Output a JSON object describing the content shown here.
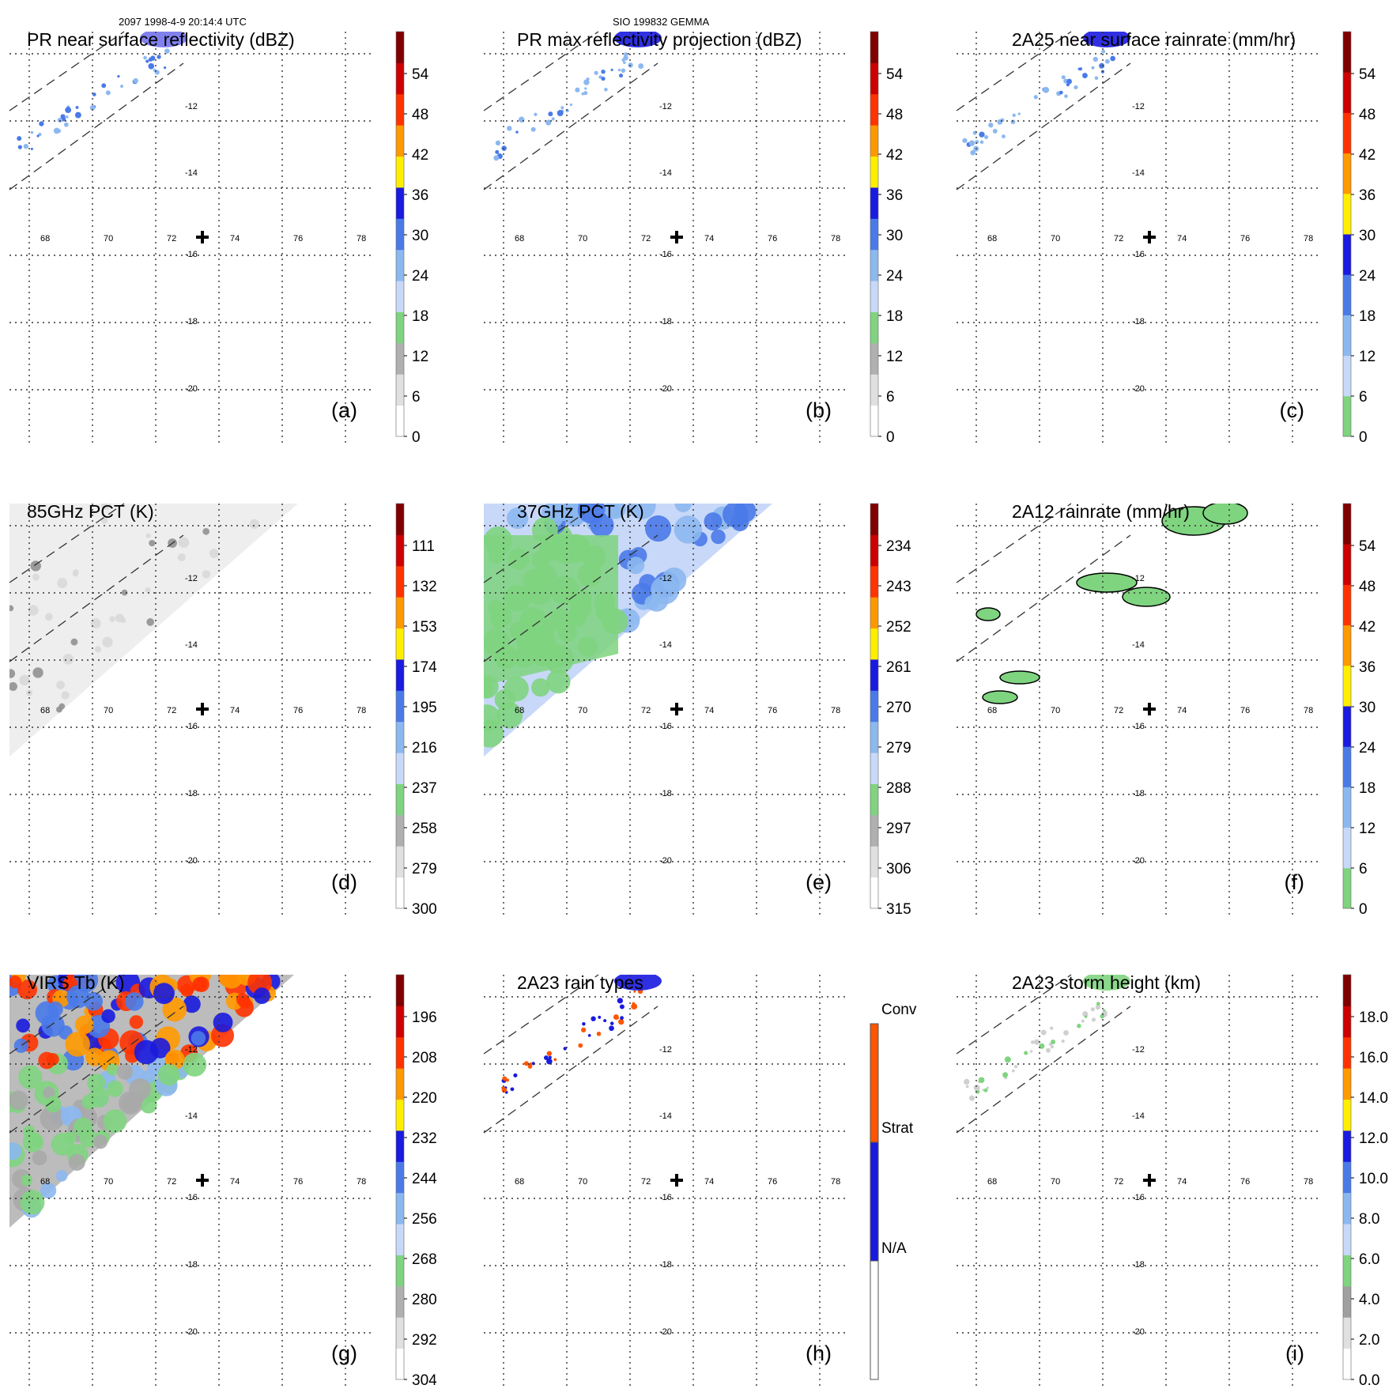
{
  "header": {
    "left": "2097 1998-4-9 20:14:4 UTC",
    "center": "SIO 199832 GEMMA"
  },
  "axes": {
    "lat_labels": [
      "-12",
      "-14",
      "-16",
      "-18",
      "-20"
    ],
    "lon_labels": [
      "68",
      "70",
      "72",
      "74",
      "76",
      "78"
    ]
  },
  "panels": [
    {
      "id": "a",
      "title": "PR near surface reflectivity (dBZ)",
      "label": "(a)",
      "colorbar": {
        "ticks": [
          "0",
          "6",
          "12",
          "18",
          "24",
          "30",
          "36",
          "42",
          "48",
          "54"
        ],
        "colors": [
          "#ffffff",
          "#e0e0e0",
          "#b0b0b0",
          "#7fd47f",
          "#c8d8f8",
          "#8cb8f0",
          "#4a7ae8",
          "#1a1ae0",
          "#ffee00",
          "#ff9900",
          "#ff3300",
          "#cc0000",
          "#800000"
        ]
      }
    },
    {
      "id": "b",
      "title": "PR max reflectivity projection (dBZ)",
      "label": "(b)",
      "colorbar": {
        "ticks": [
          "0",
          "6",
          "12",
          "18",
          "24",
          "30",
          "36",
          "42",
          "48",
          "54"
        ],
        "colors": [
          "#ffffff",
          "#e0e0e0",
          "#b0b0b0",
          "#7fd47f",
          "#c8d8f8",
          "#8cb8f0",
          "#4a7ae8",
          "#1a1ae0",
          "#ffee00",
          "#ff9900",
          "#ff3300",
          "#cc0000",
          "#800000"
        ]
      }
    },
    {
      "id": "c",
      "title": "2A25 near surface rainrate (mm/hr)",
      "label": "(c)",
      "colorbar": {
        "ticks": [
          "0",
          "6",
          "12",
          "18",
          "24",
          "30",
          "36",
          "42",
          "48",
          "54"
        ],
        "colors": [
          "#7fd47f",
          "#c8d8f8",
          "#8cb8f0",
          "#4a7ae8",
          "#1a1ae0",
          "#ffee00",
          "#ff9900",
          "#ff3300",
          "#cc0000",
          "#800000"
        ]
      }
    },
    {
      "id": "d",
      "title": "85GHz PCT (K)",
      "label": "(d)",
      "colorbar": {
        "ticks": [
          "300",
          "279",
          "258",
          "237",
          "216",
          "195",
          "174",
          "153",
          "132",
          "111"
        ],
        "colors": [
          "#ffffff",
          "#e0e0e0",
          "#b0b0b0",
          "#7fd47f",
          "#c8d8f8",
          "#8cb8f0",
          "#4a7ae8",
          "#1a1ae0",
          "#ffee00",
          "#ff9900",
          "#ff3300",
          "#cc0000",
          "#800000"
        ]
      }
    },
    {
      "id": "e",
      "title": "37GHz PCT (K)",
      "label": "(e)",
      "colorbar": {
        "ticks": [
          "315",
          "306",
          "297",
          "288",
          "279",
          "270",
          "261",
          "252",
          "243",
          "234"
        ],
        "colors": [
          "#ffffff",
          "#e0e0e0",
          "#b0b0b0",
          "#7fd47f",
          "#c8d8f8",
          "#8cb8f0",
          "#4a7ae8",
          "#1a1ae0",
          "#ffee00",
          "#ff9900",
          "#ff3300",
          "#cc0000",
          "#800000"
        ]
      }
    },
    {
      "id": "f",
      "title": "2A12 rainrate (mm/hr)",
      "label": "(f)",
      "colorbar": {
        "ticks": [
          "0",
          "6",
          "12",
          "18",
          "24",
          "30",
          "36",
          "42",
          "48",
          "54"
        ],
        "colors": [
          "#7fd47f",
          "#c8d8f8",
          "#8cb8f0",
          "#4a7ae8",
          "#1a1ae0",
          "#ffee00",
          "#ff9900",
          "#ff3300",
          "#cc0000",
          "#800000"
        ]
      }
    },
    {
      "id": "g",
      "title": "VIRS Tb (K)",
      "label": "(g)",
      "colorbar": {
        "ticks": [
          "304",
          "292",
          "280",
          "268",
          "256",
          "244",
          "232",
          "220",
          "208",
          "196"
        ],
        "colors": [
          "#ffffff",
          "#e0e0e0",
          "#b0b0b0",
          "#7fd47f",
          "#c8d8f8",
          "#8cb8f0",
          "#4a7ae8",
          "#1a1ae0",
          "#ffee00",
          "#ff9900",
          "#ff3300",
          "#cc0000",
          "#800000"
        ]
      }
    },
    {
      "id": "h",
      "title": "2A23 rain types",
      "label": "(h)",
      "colorbar": {
        "categorical": true,
        "ticks": [
          "N/A",
          "Strat",
          "Conv"
        ],
        "colors": [
          "#ffffff",
          "#1a1ae0",
          "#ff5500"
        ]
      }
    },
    {
      "id": "i",
      "title": "2A23 storm height (km)",
      "label": "(i)",
      "colorbar": {
        "ticks": [
          "0.0",
          "2.0",
          "4.0",
          "6.0",
          "8.0",
          "10.0",
          "12.0",
          "14.0",
          "16.0",
          "18.0"
        ],
        "colors": [
          "#ffffff",
          "#e0e0e0",
          "#a0a0a0",
          "#7fd47f",
          "#c8d8f8",
          "#8cb8f0",
          "#4a7ae8",
          "#1a1ae0",
          "#ffee00",
          "#ff9900",
          "#ff3300",
          "#cc0000",
          "#800000"
        ]
      }
    }
  ],
  "chart_data": [
    {
      "type": "heatmap",
      "title": "PR near surface reflectivity (dBZ)",
      "colorbar_ticks": [
        0,
        6,
        12,
        18,
        24,
        30,
        36,
        42,
        48,
        54
      ],
      "unit": "dBZ",
      "lat_ticks": [
        -12,
        -14,
        -16,
        -18,
        -20
      ],
      "lon_ticks": [
        68,
        70,
        72,
        74,
        76,
        78
      ]
    },
    {
      "type": "heatmap",
      "title": "PR max reflectivity projection (dBZ)",
      "colorbar_ticks": [
        0,
        6,
        12,
        18,
        24,
        30,
        36,
        42,
        48,
        54
      ],
      "unit": "dBZ"
    },
    {
      "type": "heatmap",
      "title": "2A25 near surface rainrate (mm/hr)",
      "colorbar_ticks": [
        0,
        6,
        12,
        18,
        24,
        30,
        36,
        42,
        48,
        54
      ],
      "unit": "mm/hr"
    },
    {
      "type": "heatmap",
      "title": "85GHz PCT (K)",
      "colorbar_ticks": [
        300,
        279,
        258,
        237,
        216,
        195,
        174,
        153,
        132,
        111
      ],
      "unit": "K"
    },
    {
      "type": "heatmap",
      "title": "37GHz PCT (K)",
      "colorbar_ticks": [
        315,
        306,
        297,
        288,
        279,
        270,
        261,
        252,
        243,
        234
      ],
      "unit": "K"
    },
    {
      "type": "heatmap",
      "title": "2A12 rainrate (mm/hr)",
      "colorbar_ticks": [
        0,
        6,
        12,
        18,
        24,
        30,
        36,
        42,
        48,
        54
      ],
      "unit": "mm/hr"
    },
    {
      "type": "heatmap",
      "title": "VIRS Tb (K)",
      "colorbar_ticks": [
        304,
        292,
        280,
        268,
        256,
        244,
        232,
        220,
        208,
        196
      ],
      "unit": "K"
    },
    {
      "type": "heatmap",
      "title": "2A23 rain types",
      "categories": [
        "N/A",
        "Strat",
        "Conv"
      ]
    },
    {
      "type": "heatmap",
      "title": "2A23 storm height (km)",
      "colorbar_ticks": [
        0.0,
        2.0,
        4.0,
        6.0,
        8.0,
        10.0,
        12.0,
        14.0,
        16.0,
        18.0
      ],
      "unit": "km"
    }
  ]
}
